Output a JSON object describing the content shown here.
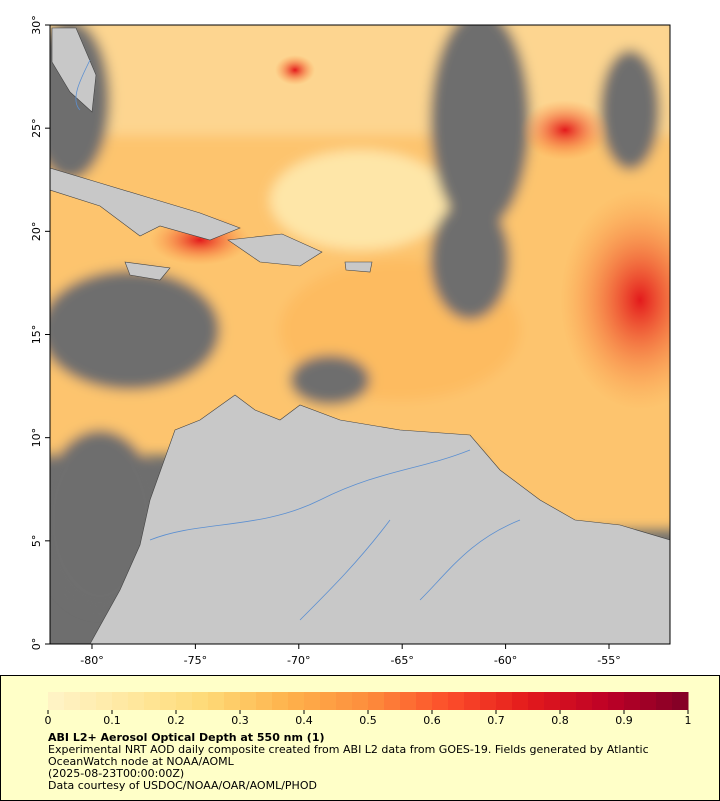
{
  "map": {
    "xlim": [
      -82.03,
      -52.05
    ],
    "ylim": [
      0,
      30
    ],
    "xticks": [
      {
        "value": -80,
        "label": "-80°"
      },
      {
        "value": -75,
        "label": "-75°"
      },
      {
        "value": -70,
        "label": "-70°"
      },
      {
        "value": -65,
        "label": "-65°"
      },
      {
        "value": -60,
        "label": "-60°"
      },
      {
        "value": -55,
        "label": "-55°"
      }
    ],
    "yticks": [
      {
        "value": 0,
        "label": "0°"
      },
      {
        "value": 5,
        "label": "5°"
      },
      {
        "value": 10,
        "label": "10°"
      },
      {
        "value": 15,
        "label": "15°"
      },
      {
        "value": 20,
        "label": "20°"
      },
      {
        "value": 25,
        "label": "25°"
      },
      {
        "value": 30,
        "label": "30°"
      }
    ]
  },
  "colorbar": {
    "lim": [
      0,
      1
    ],
    "ticks": [
      0,
      0.1,
      0.2,
      0.3,
      0.4,
      0.5,
      0.6,
      0.7,
      0.8,
      0.9,
      1
    ],
    "colors": [
      "#fff4c8",
      "#ffe8a0",
      "#fed976",
      "#feb24c",
      "#fd8d3c",
      "#fc4e2a",
      "#e31a1c",
      "#bd0026",
      "#800026"
    ]
  },
  "footer": {
    "title": "ABI L2+ Aerosol Optical Depth at 550 nm (1)",
    "description": "Experimental NRT AOD daily composite created from ABI L2 data from GOES-19. Fields generated by Atlantic OceanWatch node at NOAA/AOML",
    "timestamp": "(2025-08-23T00:00:00Z)",
    "credit": "Data courtesy of USDOC/NOAA/OAR/AOML/PHOD"
  }
}
